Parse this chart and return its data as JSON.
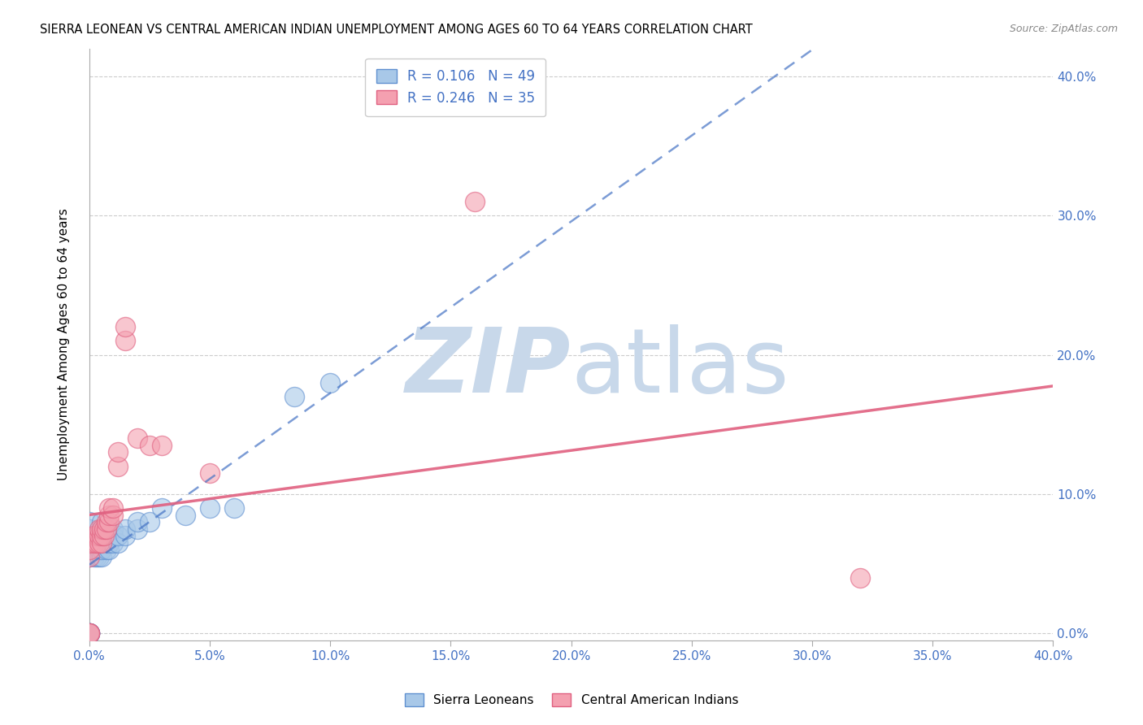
{
  "title": "SIERRA LEONEAN VS CENTRAL AMERICAN INDIAN UNEMPLOYMENT AMONG AGES 60 TO 64 YEARS CORRELATION CHART",
  "source": "Source: ZipAtlas.com",
  "ylabel": "Unemployment Among Ages 60 to 64 years",
  "xlim": [
    0.0,
    0.4
  ],
  "ylim": [
    -0.005,
    0.42
  ],
  "x_ticks": [
    0.0,
    0.05,
    0.1,
    0.15,
    0.2,
    0.25,
    0.3,
    0.35,
    0.4
  ],
  "y_ticks": [
    0.0,
    0.1,
    0.2,
    0.3,
    0.4
  ],
  "blue_R": 0.106,
  "blue_N": 49,
  "pink_R": 0.246,
  "pink_N": 35,
  "blue_color": "#a8c8e8",
  "pink_color": "#f4a0b0",
  "blue_edge_color": "#6090d0",
  "pink_edge_color": "#e06080",
  "blue_line_color": "#4472c4",
  "pink_line_color": "#e06080",
  "watermark_zip_color": "#c8d8ea",
  "watermark_atlas_color": "#c8d8ea",
  "background_color": "#ffffff",
  "blue_x": [
    0.0,
    0.0,
    0.0,
    0.0,
    0.0,
    0.0,
    0.0,
    0.0,
    0.0,
    0.0,
    0.0,
    0.0,
    0.002,
    0.002,
    0.002,
    0.002,
    0.003,
    0.003,
    0.003,
    0.004,
    0.004,
    0.004,
    0.004,
    0.005,
    0.005,
    0.005,
    0.005,
    0.005,
    0.007,
    0.007,
    0.007,
    0.008,
    0.008,
    0.01,
    0.01,
    0.01,
    0.012,
    0.012,
    0.015,
    0.015,
    0.02,
    0.02,
    0.025,
    0.03,
    0.04,
    0.05,
    0.06,
    0.085,
    0.1
  ],
  "blue_y": [
    0.0,
    0.0,
    0.0,
    0.0,
    0.0,
    0.0,
    0.055,
    0.06,
    0.065,
    0.07,
    0.075,
    0.08,
    0.055,
    0.06,
    0.065,
    0.07,
    0.055,
    0.06,
    0.065,
    0.055,
    0.06,
    0.065,
    0.07,
    0.055,
    0.06,
    0.065,
    0.07,
    0.08,
    0.06,
    0.065,
    0.07,
    0.06,
    0.065,
    0.065,
    0.07,
    0.075,
    0.065,
    0.07,
    0.07,
    0.075,
    0.075,
    0.08,
    0.08,
    0.09,
    0.085,
    0.09,
    0.09,
    0.17,
    0.18
  ],
  "pink_x": [
    0.0,
    0.0,
    0.0,
    0.0,
    0.0,
    0.0,
    0.002,
    0.002,
    0.003,
    0.003,
    0.004,
    0.004,
    0.004,
    0.005,
    0.005,
    0.005,
    0.006,
    0.006,
    0.007,
    0.007,
    0.008,
    0.008,
    0.008,
    0.01,
    0.01,
    0.012,
    0.012,
    0.015,
    0.015,
    0.02,
    0.025,
    0.03,
    0.05,
    0.16,
    0.32
  ],
  "pink_y": [
    0.0,
    0.0,
    0.0,
    0.055,
    0.06,
    0.065,
    0.065,
    0.07,
    0.065,
    0.07,
    0.065,
    0.07,
    0.075,
    0.065,
    0.07,
    0.075,
    0.07,
    0.075,
    0.075,
    0.08,
    0.08,
    0.085,
    0.09,
    0.085,
    0.09,
    0.12,
    0.13,
    0.21,
    0.22,
    0.14,
    0.135,
    0.135,
    0.115,
    0.31,
    0.04
  ]
}
